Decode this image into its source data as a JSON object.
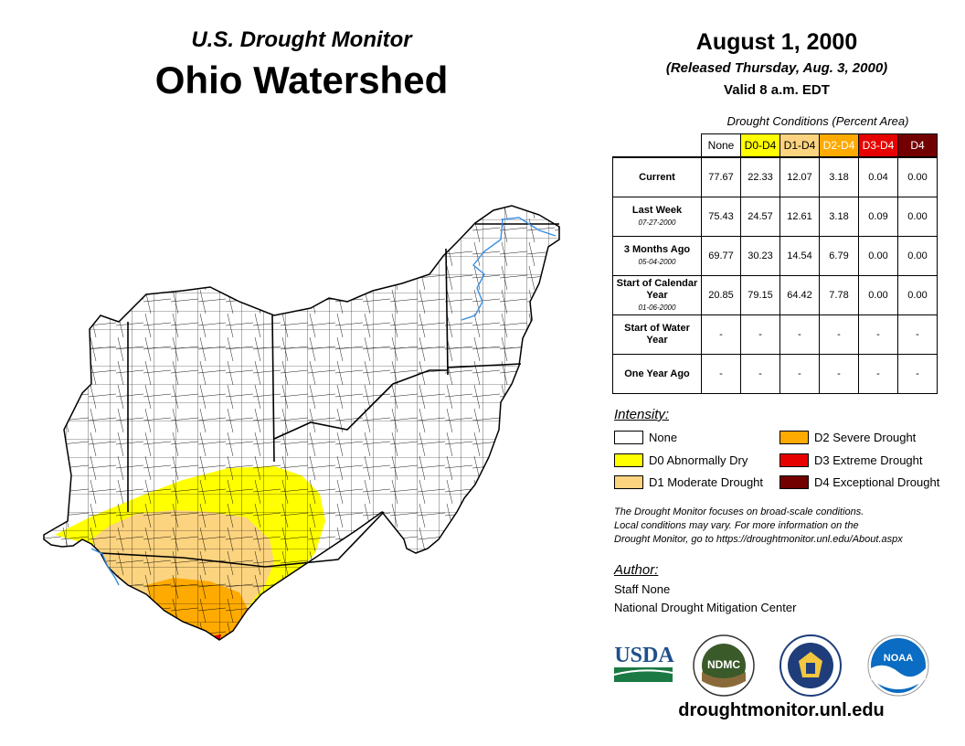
{
  "header": {
    "subtitle": "U.S. Drought Monitor",
    "title": "Ohio Watershed",
    "date": "August 1, 2000",
    "released": "(Released Thursday, Aug. 3, 2000)",
    "valid": "Valid 8 a.m. EDT"
  },
  "table": {
    "caption": "Drought Conditions (Percent Area)",
    "columns": [
      "None",
      "D0-D4",
      "D1-D4",
      "D2-D4",
      "D3-D4",
      "D4"
    ],
    "rows": [
      {
        "label": "Current",
        "date": "",
        "values": [
          "77.67",
          "22.33",
          "12.07",
          "3.18",
          "0.04",
          "0.00"
        ]
      },
      {
        "label": "Last Week",
        "date": "07-27-2000",
        "values": [
          "75.43",
          "24.57",
          "12.61",
          "3.18",
          "0.09",
          "0.00"
        ]
      },
      {
        "label": "3 Months Ago",
        "date": "05-04-2000",
        "values": [
          "69.77",
          "30.23",
          "14.54",
          "6.79",
          "0.00",
          "0.00"
        ]
      },
      {
        "label": "Start of Calendar Year",
        "date": "01-06-2000",
        "values": [
          "20.85",
          "79.15",
          "64.42",
          "7.78",
          "0.00",
          "0.00"
        ]
      },
      {
        "label": "Start of Water Year",
        "date": "",
        "values": [
          "-",
          "-",
          "-",
          "-",
          "-",
          "-"
        ]
      },
      {
        "label": "One Year Ago",
        "date": "",
        "values": [
          "-",
          "-",
          "-",
          "-",
          "-",
          "-"
        ]
      }
    ]
  },
  "legend": {
    "title": "Intensity:",
    "items": [
      {
        "label": "None",
        "color": "#ffffff"
      },
      {
        "label": "D0 Abnormally Dry",
        "color": "#ffff00"
      },
      {
        "label": "D1 Moderate Drought",
        "color": "#fcd37f"
      },
      {
        "label": "D2 Severe Drought",
        "color": "#ffaa00"
      },
      {
        "label": "D3 Extreme Drought",
        "color": "#e60000"
      },
      {
        "label": "D4 Exceptional Drought",
        "color": "#730000"
      }
    ]
  },
  "note": {
    "line1": "The Drought Monitor focuses on broad-scale conditions.",
    "line2": "Local conditions may vary. For more information on the",
    "line3": "Drought Monitor, go to https://droughtmonitor.unl.edu/About.aspx"
  },
  "author": {
    "title": "Author:",
    "name": "Staff None",
    "org": "National Drought Mitigation Center"
  },
  "logos": {
    "usda": "USDA",
    "ndmc": "NDMC",
    "noaa": "NOAA"
  },
  "website": "droughtmonitor.unl.edu"
}
